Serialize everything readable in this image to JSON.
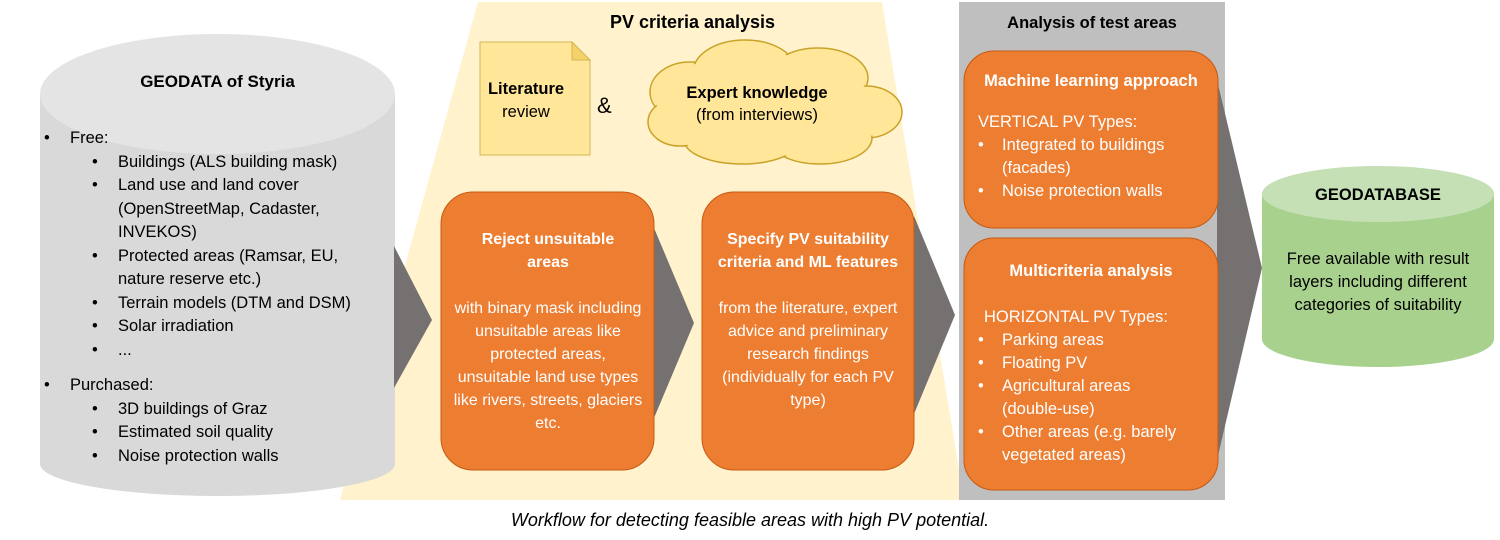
{
  "geodata": {
    "title": "GEODATA of Styria",
    "free_label": "Free:",
    "free_items": [
      "Buildings (ALS building mask)",
      "Land use and land cover (OpenStreetMap, Cadaster, INVEKOS)",
      "Protected areas (Ramsar, EU, nature reserve etc.)",
      "Terrain models (DTM and DSM)",
      "Solar irradiation",
      "..."
    ],
    "purchased_label": "Purchased:",
    "purchased_items": [
      "3D buildings of Graz",
      "Estimated soil quality",
      "Noise protection walls"
    ]
  },
  "pv_criteria": {
    "title": "PV criteria analysis",
    "literature_title": "Literature",
    "literature_sub": "review",
    "ampersand": "&",
    "expert_title": "Expert knowledge",
    "expert_sub": "(from interviews)",
    "reject_title": "Reject unsuitable areas",
    "reject_body": "with binary mask including unsuitable areas like protected areas, unsuitable land use types like rivers, streets, glaciers etc.",
    "specify_title": "Specify PV suitability criteria and ML features",
    "specify_body": "from the literature, expert advice and preliminary research findings (individually for each PV type)"
  },
  "test_areas": {
    "title": "Analysis of test areas",
    "ml_title": "Machine learning approach",
    "ml_subtitle": "VERTICAL PV Types:",
    "ml_items": [
      "Integrated to buildings (facades)",
      "Noise protection walls"
    ],
    "mc_title": "Multicriteria analysis",
    "mc_subtitle": "HORIZONTAL PV Types:",
    "mc_items": [
      "Parking areas",
      "Floating PV",
      "Agricultural areas (double-use)",
      "Other areas (e.g. barely vegetated areas)"
    ]
  },
  "geodatabase": {
    "title": "GEODATABASE",
    "body": "Free available with result layers including different categories of suitability"
  },
  "caption": "Workflow for detecting feasible areas with high PV potential.",
  "colors": {
    "orange": "#ED7D31",
    "orange_border": "#C55A11",
    "cream": "#FFF2CC",
    "gray_panel": "#BFBFBF",
    "green": "#A9D18E",
    "cylinder": "#D9D9D9",
    "arrow": "#767171"
  }
}
